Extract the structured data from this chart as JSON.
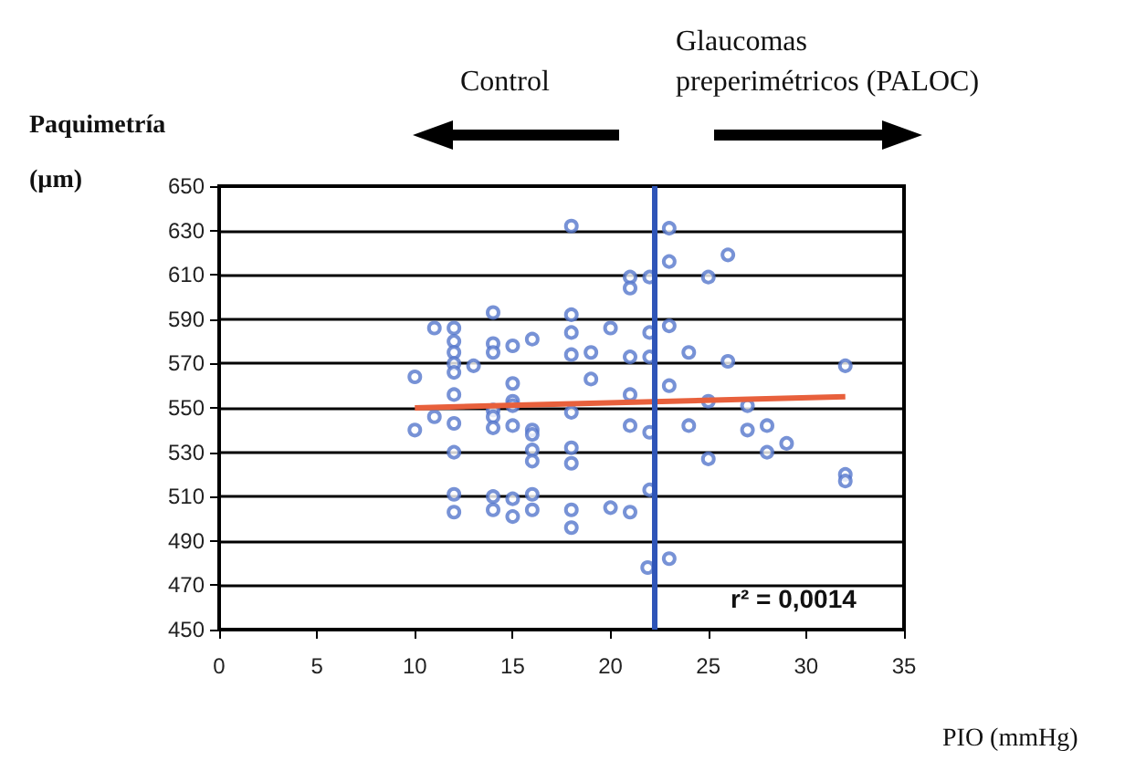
{
  "chart_data": {
    "type": "scatter",
    "xlabel": "PIO (mmHg)",
    "ylabel": "Paquimetría\n(µm)",
    "annotations": [
      "Control",
      "Glaucomas\npreperimétricos (PALOC)",
      "r² = 0,0014"
    ],
    "series": [
      {
        "color": "#5577cc",
        "marker": "circle",
        "x": [
          18,
          21,
          21,
          14,
          18,
          11,
          12,
          12,
          12,
          12,
          12,
          20,
          18,
          14,
          14,
          15,
          16,
          18,
          19,
          21,
          13,
          10,
          12,
          15,
          19,
          15,
          21,
          11,
          12,
          14,
          14,
          14,
          15,
          15,
          16,
          18,
          10,
          21,
          16,
          12,
          16,
          16,
          18,
          18,
          12,
          12,
          14,
          14,
          15,
          15,
          16,
          16,
          18,
          18,
          20,
          21,
          21.9,
          23,
          23,
          26,
          25,
          22,
          23,
          22,
          24,
          26,
          22,
          32,
          23,
          25,
          27,
          24,
          27,
          28,
          22,
          29,
          25,
          28,
          32,
          32,
          22,
          23
        ],
        "values": [
          632,
          609,
          604,
          593,
          592,
          586,
          586,
          580,
          575,
          570,
          566,
          586,
          584,
          579,
          575,
          578,
          581,
          574,
          575,
          573,
          569,
          564,
          556,
          561,
          563,
          553,
          556,
          546,
          543,
          549,
          546,
          541,
          551,
          542,
          540,
          548,
          540,
          542,
          538,
          530,
          531,
          526,
          532,
          525,
          511,
          503,
          510,
          504,
          509,
          501,
          511,
          504,
          504,
          496,
          505,
          503,
          478,
          631,
          616,
          619,
          609,
          609,
          587,
          584,
          575,
          571,
          573,
          569,
          560,
          553,
          551,
          542,
          540,
          542,
          539,
          534,
          527,
          530,
          520,
          517,
          513,
          482
        ]
      },
      {
        "type": "line",
        "color": "#e8603c",
        "marker": "none",
        "x": [
          10,
          32
        ],
        "values": [
          550,
          555
        ]
      }
    ],
    "xlim": [
      0,
      35
    ],
    "xticks": [
      0,
      5,
      10,
      15,
      20,
      25,
      30,
      35
    ],
    "ylim": [
      450,
      650
    ],
    "yticks": [
      450,
      470,
      490,
      510,
      530,
      550,
      570,
      590,
      610,
      630,
      650
    ],
    "grid": "y",
    "ref_lines": [
      {
        "axis": "x",
        "value": 22.2,
        "color": "#2f55b8"
      }
    ]
  }
}
